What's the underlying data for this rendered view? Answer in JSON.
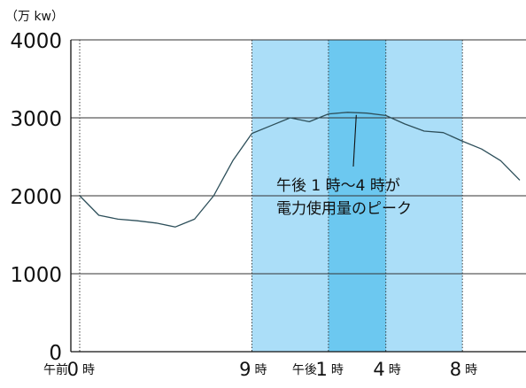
{
  "chart_data": {
    "type": "line",
    "unit_label": "（万 kw）",
    "x_range": [
      0,
      23
    ],
    "y_range": [
      0,
      4000
    ],
    "y_ticks": [
      {
        "value": 0,
        "label": "0"
      },
      {
        "value": 1000,
        "label": "1000"
      },
      {
        "value": 2000,
        "label": "2000"
      },
      {
        "value": 3000,
        "label": "3000"
      },
      {
        "value": 4000,
        "label": "4000"
      }
    ],
    "x_ticks": [
      {
        "value": 0,
        "prefix": "午前",
        "num": "0",
        "suffix": "時"
      },
      {
        "value": 9,
        "prefix": "",
        "num": "9",
        "suffix": "時"
      },
      {
        "value": 13,
        "prefix": "午後",
        "num": "1",
        "suffix": "時"
      },
      {
        "value": 16,
        "prefix": "",
        "num": "4",
        "suffix": "時"
      },
      {
        "value": 20,
        "prefix": "",
        "num": "8",
        "suffix": "時"
      }
    ],
    "series": [
      {
        "x": [
          0,
          1,
          2,
          3,
          4,
          5,
          6,
          7,
          8,
          9,
          10,
          11,
          12,
          13,
          14,
          15,
          16,
          17,
          18,
          19,
          20,
          21,
          22,
          23
        ],
        "values": [
          2000,
          1750,
          1700,
          1680,
          1650,
          1600,
          1700,
          2000,
          2450,
          2800,
          2900,
          3000,
          2950,
          3050,
          3070,
          3060,
          3030,
          2920,
          2830,
          2810,
          2700,
          2600,
          2450,
          2200
        ],
        "color": "#2d4f5a"
      }
    ],
    "shaded_bands": [
      {
        "from": 9,
        "to": 20,
        "color": "#abdef8"
      },
      {
        "from": 13,
        "to": 16,
        "color": "#6cc8f0"
      }
    ],
    "annotation": {
      "lines": [
        "午後 1 時～4 時が",
        "電力使用量のピーク"
      ],
      "points_to": {
        "x": 14.5,
        "y": 3060
      }
    },
    "grid": true
  }
}
